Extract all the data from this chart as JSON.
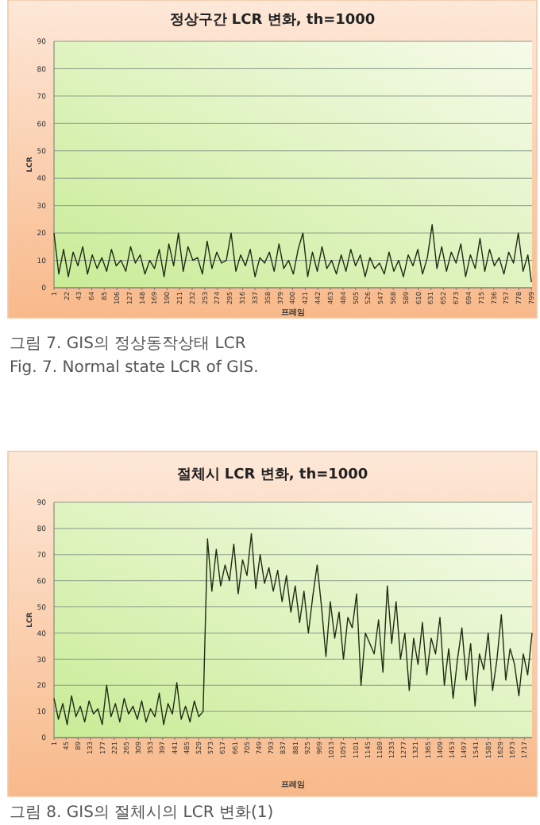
{
  "chart_data": [
    {
      "type": "line",
      "title": "정상구간 LCR 변화, th=1000",
      "xlabel": "프레임",
      "ylabel": "LCR",
      "color": "#1f2d14",
      "grid": "y",
      "xlim": [
        1,
        800
      ],
      "ylim": [
        0,
        90
      ],
      "yticks": [
        0,
        10,
        20,
        30,
        40,
        50,
        60,
        70,
        80,
        90
      ],
      "xticks": [
        1,
        22,
        43,
        64,
        85,
        106,
        127,
        148,
        169,
        190,
        211,
        232,
        253,
        274,
        295,
        316,
        337,
        358,
        379,
        400,
        421,
        442,
        463,
        484,
        505,
        526,
        547,
        568,
        589,
        610,
        631,
        652,
        673,
        694,
        715,
        736,
        757,
        778,
        799
      ],
      "x": [
        1,
        9,
        17,
        25,
        33,
        41,
        49,
        57,
        65,
        73,
        81,
        89,
        97,
        105,
        113,
        121,
        129,
        137,
        145,
        153,
        161,
        169,
        177,
        185,
        193,
        201,
        209,
        217,
        225,
        233,
        241,
        249,
        257,
        265,
        273,
        281,
        289,
        297,
        305,
        313,
        321,
        329,
        337,
        345,
        353,
        361,
        369,
        377,
        385,
        393,
        401,
        409,
        417,
        425,
        433,
        441,
        449,
        457,
        465,
        473,
        481,
        489,
        497,
        505,
        513,
        521,
        529,
        537,
        545,
        553,
        561,
        569,
        577,
        585,
        593,
        601,
        609,
        617,
        625,
        633,
        641,
        649,
        657,
        665,
        673,
        681,
        689,
        697,
        705,
        713,
        721,
        729,
        737,
        745,
        753,
        761,
        769,
        777,
        785,
        793,
        799
      ],
      "values": [
        20,
        5,
        14,
        4,
        13,
        8,
        15,
        5,
        12,
        7,
        11,
        6,
        14,
        8,
        10,
        6,
        15,
        9,
        12,
        5,
        10,
        7,
        14,
        4,
        16,
        8,
        20,
        6,
        15,
        10,
        11,
        5,
        17,
        7,
        13,
        9,
        10,
        20,
        6,
        12,
        8,
        14,
        4,
        11,
        9,
        13,
        6,
        16,
        7,
        10,
        5,
        14,
        20,
        4,
        13,
        6,
        15,
        7,
        10,
        5,
        12,
        6,
        14,
        8,
        12,
        4,
        11,
        7,
        9,
        5,
        13,
        6,
        10,
        4,
        12,
        8,
        14,
        5,
        11,
        23,
        7,
        15,
        6,
        13,
        9,
        16,
        4,
        12,
        7,
        18,
        6,
        14,
        8,
        11,
        5,
        13,
        9,
        20,
        6,
        12,
        2
      ],
      "annotations": [
        "그림 7. GIS의 정상동작상태 LCR",
        "Fig. 7. Normal state LCR of GIS."
      ]
    },
    {
      "type": "line",
      "title": "절체시 LCR 변화, th=1000",
      "xlabel": "프레임",
      "ylabel": "LCR",
      "color": "#1f2d14",
      "grid": "y",
      "xlim": [
        1,
        1745
      ],
      "ylim": [
        0,
        90
      ],
      "yticks": [
        0,
        10,
        20,
        30,
        40,
        50,
        60,
        70,
        80,
        90
      ],
      "xticks": [
        1,
        45,
        89,
        133,
        177,
        221,
        265,
        309,
        353,
        397,
        441,
        485,
        529,
        573,
        617,
        661,
        705,
        749,
        793,
        837,
        881,
        925,
        969,
        1013,
        1057,
        1101,
        1145,
        1189,
        1233,
        1277,
        1321,
        1365,
        1409,
        1453,
        1497,
        1541,
        1585,
        1629,
        1673,
        1717
      ],
      "x": [
        1,
        17,
        33,
        49,
        65,
        81,
        97,
        113,
        129,
        145,
        161,
        177,
        193,
        209,
        225,
        241,
        257,
        273,
        289,
        305,
        321,
        337,
        353,
        369,
        385,
        401,
        417,
        433,
        449,
        465,
        481,
        497,
        513,
        529,
        545,
        561,
        577,
        593,
        609,
        625,
        641,
        657,
        673,
        689,
        705,
        721,
        737,
        753,
        769,
        785,
        801,
        817,
        833,
        849,
        865,
        881,
        897,
        913,
        929,
        945,
        961,
        977,
        993,
        1009,
        1025,
        1041,
        1057,
        1073,
        1089,
        1105,
        1121,
        1137,
        1153,
        1169,
        1185,
        1201,
        1217,
        1233,
        1249,
        1265,
        1281,
        1297,
        1313,
        1329,
        1345,
        1361,
        1377,
        1393,
        1409,
        1425,
        1441,
        1457,
        1473,
        1489,
        1505,
        1521,
        1537,
        1553,
        1569,
        1585,
        1601,
        1617,
        1633,
        1649,
        1665,
        1681,
        1697,
        1713,
        1729,
        1745
      ],
      "values": [
        15,
        7,
        13,
        5,
        16,
        8,
        12,
        6,
        14,
        9,
        11,
        5,
        20,
        8,
        13,
        6,
        15,
        9,
        12,
        7,
        14,
        6,
        11,
        8,
        17,
        5,
        13,
        9,
        21,
        7,
        12,
        6,
        14,
        8,
        10,
        76,
        56,
        72,
        58,
        66,
        60,
        74,
        55,
        68,
        62,
        78,
        57,
        70,
        59,
        65,
        56,
        64,
        52,
        62,
        48,
        58,
        44,
        56,
        40,
        54,
        66,
        50,
        31,
        52,
        38,
        48,
        30,
        46,
        42,
        55,
        20,
        40,
        36,
        32,
        45,
        25,
        58,
        36,
        52,
        30,
        40,
        18,
        38,
        28,
        44,
        24,
        38,
        32,
        46,
        20,
        34,
        15,
        30,
        42,
        22,
        36,
        12,
        32,
        26,
        40,
        18,
        30,
        47,
        22,
        34,
        28,
        16,
        32,
        24,
        40
      ],
      "annotations": [
        "그림 8. GIS의 절체시의 LCR 변화(1)"
      ]
    }
  ]
}
